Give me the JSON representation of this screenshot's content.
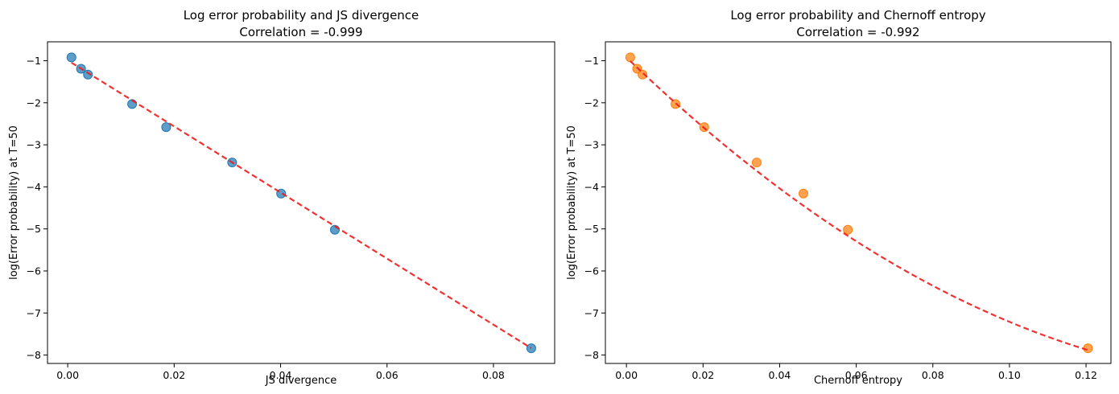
{
  "chart_data": [
    {
      "type": "scatter",
      "title_line1": "Log error probability and JS divergence",
      "title_line2": "Correlation = -0.999",
      "xlabel": "JS divergence",
      "ylabel": "log(Error probability) at T=50",
      "xlim": [
        -0.0038,
        0.0915
      ],
      "ylim": [
        -8.2,
        -0.55
      ],
      "xticks": [
        0.0,
        0.02,
        0.04,
        0.06,
        0.08
      ],
      "xtick_labels": [
        "0.00",
        "0.02",
        "0.04",
        "0.06",
        "0.08"
      ],
      "yticks": [
        -1,
        -2,
        -3,
        -4,
        -5,
        -6,
        -7,
        -8
      ],
      "ytick_labels": [
        "−1",
        "−2",
        "−3",
        "−4",
        "−5",
        "−6",
        "−7",
        "−8"
      ],
      "grid": false,
      "marker_color": "#1f77b4",
      "fit_color": "#ee1c1c",
      "points": [
        {
          "x": 0.0007,
          "y": -0.92
        },
        {
          "x": 0.0025,
          "y": -1.19
        },
        {
          "x": 0.0038,
          "y": -1.33
        },
        {
          "x": 0.0121,
          "y": -2.03
        },
        {
          "x": 0.0185,
          "y": -2.58
        },
        {
          "x": 0.0309,
          "y": -3.42
        },
        {
          "x": 0.0401,
          "y": -4.16
        },
        {
          "x": 0.0502,
          "y": -5.02
        },
        {
          "x": 0.0871,
          "y": -7.84
        }
      ],
      "fit": {
        "kind": "linear",
        "coef": [
          -0.99,
          -78.6
        ],
        "x_range": [
          0.0007,
          0.0871
        ]
      }
    },
    {
      "type": "scatter",
      "title_line1": "Log error probability and Chernoff entropy",
      "title_line2": "Correlation = -0.992",
      "xlabel": "Chernoff entropy",
      "ylabel": "log(Error probability) at T=50",
      "xlim": [
        -0.0055,
        0.1265
      ],
      "ylim": [
        -8.2,
        -0.55
      ],
      "xticks": [
        0.0,
        0.02,
        0.04,
        0.06,
        0.08,
        0.1,
        0.12
      ],
      "xtick_labels": [
        "0.00",
        "0.02",
        "0.04",
        "0.06",
        "0.08",
        "0.10",
        "0.12"
      ],
      "yticks": [
        -1,
        -2,
        -3,
        -4,
        -5,
        -6,
        -7,
        -8
      ],
      "ytick_labels": [
        "−1",
        "−2",
        "−3",
        "−4",
        "−5",
        "−6",
        "−7",
        "−8"
      ],
      "grid": false,
      "marker_color": "#ff7f0e",
      "fit_color": "#ee1c1c",
      "points": [
        {
          "x": 0.001,
          "y": -0.92
        },
        {
          "x": 0.0028,
          "y": -1.19
        },
        {
          "x": 0.0042,
          "y": -1.33
        },
        {
          "x": 0.0128,
          "y": -2.03
        },
        {
          "x": 0.0203,
          "y": -2.58
        },
        {
          "x": 0.034,
          "y": -3.42
        },
        {
          "x": 0.0462,
          "y": -4.16
        },
        {
          "x": 0.0578,
          "y": -5.02
        },
        {
          "x": 0.1205,
          "y": -7.84
        }
      ],
      "fit": {
        "kind": "quadratic",
        "coef": [
          -0.92,
          -87.9,
          250
        ],
        "x_range": [
          0.001,
          0.1205
        ]
      }
    }
  ]
}
